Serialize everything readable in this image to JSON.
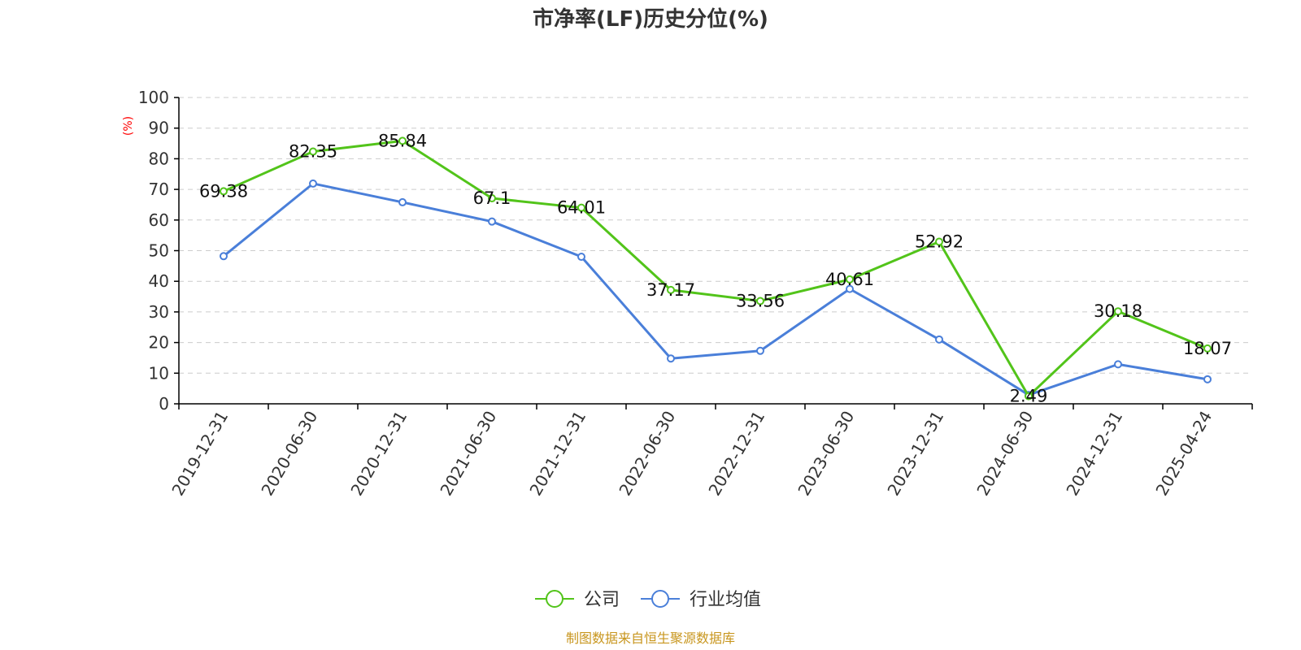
{
  "chart_data": {
    "type": "line",
    "title": "市净率(LF)历史分位(%)",
    "ylabel": "(%)",
    "xlabel": "",
    "ylim": [
      0,
      100
    ],
    "yticks": [
      0,
      10,
      20,
      30,
      40,
      50,
      60,
      70,
      80,
      90,
      100
    ],
    "grid": true,
    "legend_position": "bottom-center",
    "categories": [
      "2019-12-31",
      "2020-06-30",
      "2020-12-31",
      "2021-06-30",
      "2021-12-31",
      "2022-06-30",
      "2022-12-31",
      "2023-06-30",
      "2023-12-31",
      "2024-06-30",
      "2024-12-31",
      "2025-04-24"
    ],
    "series": [
      {
        "name": "公司",
        "color": "#52c41a",
        "show_labels": true,
        "values": [
          69.38,
          82.35,
          85.84,
          67.1,
          64.01,
          37.17,
          33.56,
          40.61,
          52.92,
          2.49,
          30.18,
          18.07
        ]
      },
      {
        "name": "行业均值",
        "color": "#4a7fd9",
        "show_labels": false,
        "values": [
          48.2,
          71.9,
          65.8,
          59.5,
          48.0,
          14.8,
          17.3,
          37.5,
          21.0,
          2.9,
          12.9,
          8.0
        ]
      }
    ]
  },
  "footer": {
    "source": "制图数据来自恒生聚源数据库"
  }
}
